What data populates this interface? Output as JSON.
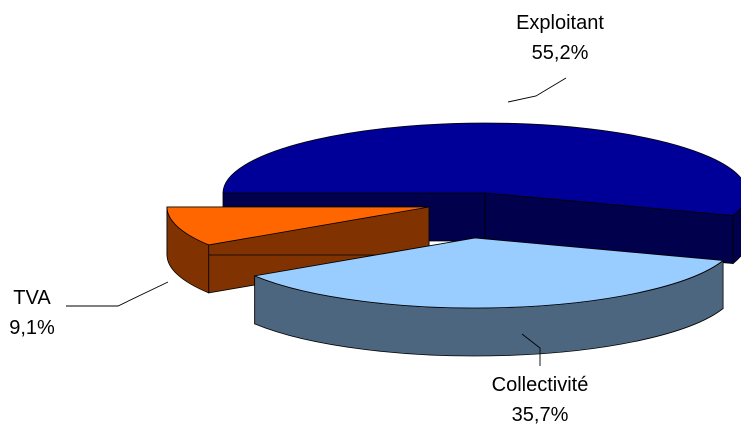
{
  "chart_data": {
    "type": "pie",
    "style": "3d-exploded",
    "legend": "none",
    "slices": [
      {
        "label": "Exploitant",
        "value": 55.2,
        "value_text": "55,2%",
        "color": "#000099",
        "side_color": "#00004d"
      },
      {
        "label": "Collectivité",
        "value": 35.7,
        "value_text": "35,7%",
        "color": "#99ccff",
        "side_color": "#4d6680"
      },
      {
        "label": "TVA",
        "value": 9.1,
        "value_text": "9,1%",
        "color": "#ff6600",
        "side_color": "#803300"
      }
    ]
  }
}
